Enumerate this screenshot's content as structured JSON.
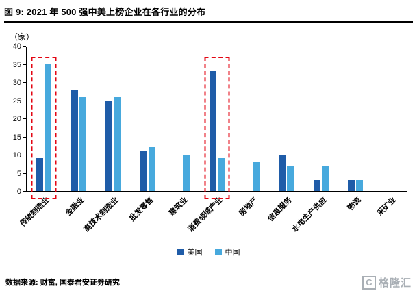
{
  "header": {
    "title": "图 9: 2021 年 500 强中美上榜企业在各行业的分布"
  },
  "footer": {
    "source": "数据来源: 财富, 国泰君安证券研究",
    "watermark": "格隆汇",
    "watermark_mark": "C"
  },
  "chart_data": {
    "type": "bar",
    "title": "图 9: 2021 年 500 强中美上榜企业在各行业的分布",
    "unit_label": "（家）",
    "ylim": [
      0,
      40
    ],
    "ytick_step": 5,
    "grid": false,
    "legend_position": "bottom-center",
    "categories": [
      "传统制造业",
      "金融业",
      "高技术制造业",
      "批发零售",
      "建筑业",
      "消费领域产业",
      "房地产",
      "信息服务",
      "水电生产供应",
      "物流",
      "采矿业"
    ],
    "series": [
      {
        "name": "美国",
        "color": "#1f5ca8",
        "values": [
          9,
          28,
          25,
          11,
          0,
          33,
          0,
          10,
          3,
          3,
          0
        ]
      },
      {
        "name": "中国",
        "color": "#47a9dd",
        "values": [
          35,
          26,
          26,
          12,
          10,
          9,
          8,
          7,
          7,
          3,
          0
        ]
      }
    ],
    "highlight": {
      "categories": [
        "传统制造业",
        "消费领域产业"
      ],
      "top_value": 37,
      "color": "#e30613",
      "style": "dashed-red-box"
    }
  }
}
